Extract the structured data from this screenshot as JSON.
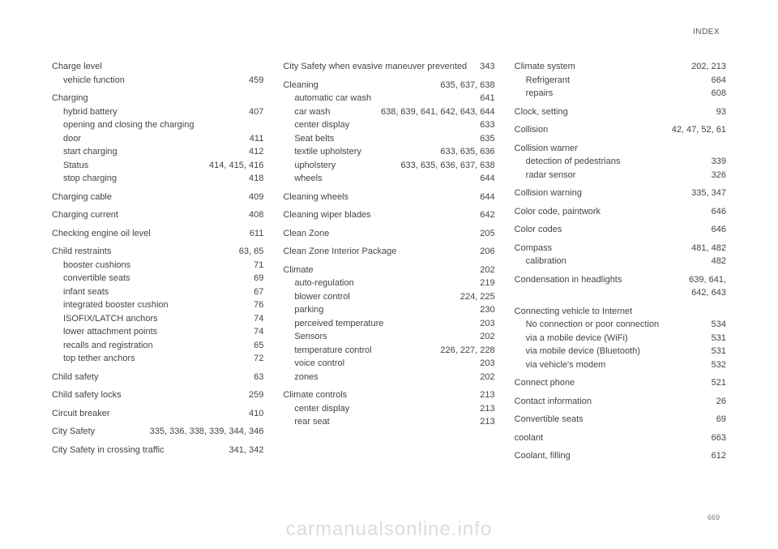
{
  "header": "INDEX",
  "pageNumber": "669",
  "watermark": "carmanualsonline.info",
  "col1": [
    {
      "label": "Charge level",
      "pages": "",
      "subs": [
        {
          "label": "vehicle function",
          "pages": "459"
        }
      ]
    },
    {
      "label": "Charging",
      "pages": "",
      "subs": [
        {
          "label": "hybrid battery",
          "pages": "407"
        },
        {
          "label": "opening and closing the charging door",
          "pages": "411",
          "wrap": true
        },
        {
          "label": "start charging",
          "pages": "412"
        },
        {
          "label": "Status",
          "pages": "414, 415, 416"
        },
        {
          "label": "stop charging",
          "pages": "418"
        }
      ]
    },
    {
      "label": "Charging cable",
      "pages": "409"
    },
    {
      "label": "Charging current",
      "pages": "408"
    },
    {
      "label": "Checking engine oil level",
      "pages": "611"
    },
    {
      "label": "Child restraints",
      "pages": "63, 65",
      "subs": [
        {
          "label": "booster cushions",
          "pages": "71"
        },
        {
          "label": "convertible seats",
          "pages": "69"
        },
        {
          "label": "infant seats",
          "pages": "67"
        },
        {
          "label": "integrated booster cushion",
          "pages": "76"
        },
        {
          "label": "ISOFIX/LATCH anchors",
          "pages": "74"
        },
        {
          "label": "lower attachment points",
          "pages": "74"
        },
        {
          "label": "recalls and registration",
          "pages": "65"
        },
        {
          "label": "top tether anchors",
          "pages": "72"
        }
      ]
    },
    {
      "label": "Child safety",
      "pages": "63"
    },
    {
      "label": "Child safety locks",
      "pages": "259"
    },
    {
      "label": "Circuit breaker",
      "pages": "410"
    },
    {
      "label": "City Safety",
      "pages": "335, 336, 338, 339, 344, 346"
    },
    {
      "label": "City Safety in crossing traffic",
      "pages": "341, 342"
    }
  ],
  "col2": [
    {
      "label": "City Safety when evasive maneuver prevented",
      "pages": "343",
      "wrap": true
    },
    {
      "label": "Cleaning",
      "pages": "635, 637, 638",
      "subs": [
        {
          "label": "automatic car wash",
          "pages": "641"
        },
        {
          "label": "car wash",
          "pages": "638, 639, 641, 642, 643, 644"
        },
        {
          "label": "center display",
          "pages": "633"
        },
        {
          "label": "Seat belts",
          "pages": "635"
        },
        {
          "label": "textile upholstery",
          "pages": "633, 635, 636"
        },
        {
          "label": "upholstery",
          "pages": "633, 635, 636, 637, 638"
        },
        {
          "label": "wheels",
          "pages": "644"
        }
      ]
    },
    {
      "label": "Cleaning wheels",
      "pages": "644"
    },
    {
      "label": "Cleaning wiper blades",
      "pages": "642"
    },
    {
      "label": "Clean Zone",
      "pages": "205"
    },
    {
      "label": "Clean Zone Interior Package",
      "pages": "206"
    },
    {
      "label": "Climate",
      "pages": "202",
      "subs": [
        {
          "label": "auto-regulation",
          "pages": "219"
        },
        {
          "label": "blower control",
          "pages": "224, 225"
        },
        {
          "label": "parking",
          "pages": "230"
        },
        {
          "label": "perceived temperature",
          "pages": "203"
        },
        {
          "label": "Sensors",
          "pages": "202"
        },
        {
          "label": "temperature control",
          "pages": "226, 227, 228"
        },
        {
          "label": "voice control",
          "pages": "203"
        },
        {
          "label": "zones",
          "pages": "202"
        }
      ]
    },
    {
      "label": "Climate controls",
      "pages": "213",
      "subs": [
        {
          "label": "center display",
          "pages": "213"
        },
        {
          "label": "rear seat",
          "pages": "213"
        }
      ]
    }
  ],
  "col3": [
    {
      "label": "Climate system",
      "pages": "202, 213",
      "subs": [
        {
          "label": "Refrigerant",
          "pages": "664"
        },
        {
          "label": "repairs",
          "pages": "608"
        }
      ]
    },
    {
      "label": "Clock, setting",
      "pages": "93"
    },
    {
      "label": "Collision",
      "pages": "42, 47, 52, 61"
    },
    {
      "label": "Collision warner",
      "pages": "",
      "subs": [
        {
          "label": "detection of pedestrians",
          "pages": "339"
        },
        {
          "label": "radar sensor",
          "pages": "326"
        }
      ]
    },
    {
      "label": "Collision warning",
      "pages": "335, 347"
    },
    {
      "label": "Color code, paintwork",
      "pages": "646"
    },
    {
      "label": "Color codes",
      "pages": "646"
    },
    {
      "label": "Compass",
      "pages": "481, 482",
      "subs": [
        {
          "label": "calibration",
          "pages": "482"
        }
      ]
    },
    {
      "label": "Condensation in headlights",
      "pages": "639, 641,",
      "extra": "642, 643"
    },
    {
      "label": "Connecting vehicle to Internet",
      "pages": "",
      "subs": [
        {
          "label": "No connection or poor connection",
          "pages": "534"
        },
        {
          "label": "via a mobile device (WiFi)",
          "pages": "531"
        },
        {
          "label": "via mobile device (Bluetooth)",
          "pages": "531"
        },
        {
          "label": "via vehicle's modem",
          "pages": "532"
        }
      ]
    },
    {
      "label": "Connect phone",
      "pages": "521"
    },
    {
      "label": "Contact information",
      "pages": "26"
    },
    {
      "label": "Convertible seats",
      "pages": "69"
    },
    {
      "label": "coolant",
      "pages": "663"
    },
    {
      "label": "Coolant, filling",
      "pages": "612"
    }
  ]
}
